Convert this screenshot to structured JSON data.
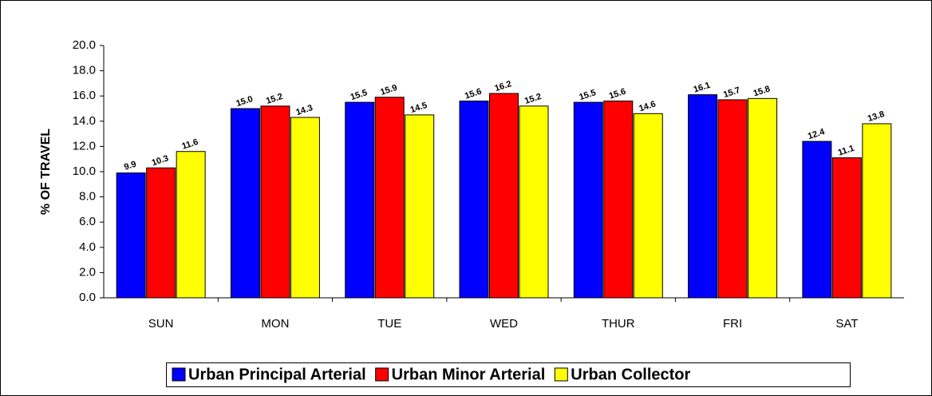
{
  "chart_data": {
    "type": "bar",
    "y_label": "% OF TRAVEL",
    "categories": [
      "SUN",
      "MON",
      "TUE",
      "WED",
      "THUR",
      "FRI",
      "SAT"
    ],
    "series": [
      {
        "name": "Urban Principal Arterial",
        "color": "#0000ff",
        "values": [
          9.9,
          15.0,
          15.5,
          15.6,
          15.5,
          16.1,
          12.4
        ],
        "value_labels": [
          "9.9",
          "15.0",
          "15.5",
          "15.6",
          "15.5",
          "16.1",
          "12.4"
        ]
      },
      {
        "name": "Urban Minor Arterial",
        "color": "#ff0000",
        "values": [
          10.3,
          15.2,
          15.9,
          16.2,
          15.6,
          15.7,
          11.1
        ],
        "value_labels": [
          "10.3",
          "15.2",
          "15.9",
          "16.2",
          "15.6",
          "15.7",
          "11.1"
        ]
      },
      {
        "name": "Urban Collector",
        "color": "#ffff00",
        "values": [
          11.6,
          14.3,
          14.5,
          15.2,
          14.6,
          15.8,
          13.8
        ],
        "value_labels": [
          "11.6",
          "14.3",
          "14.5",
          "15.2",
          "14.6",
          "15.8",
          "13.8"
        ]
      }
    ],
    "ylim": [
      0,
      20
    ],
    "yticks": [
      {
        "value": 0,
        "label": "0.0"
      },
      {
        "value": 2,
        "label": "2.0"
      },
      {
        "value": 4,
        "label": "4.0"
      },
      {
        "value": 6,
        "label": "6.0"
      },
      {
        "value": 8,
        "label": "8.0"
      },
      {
        "value": 10,
        "label": "10.0"
      },
      {
        "value": 12,
        "label": "12.0"
      },
      {
        "value": 14,
        "label": "14.0"
      },
      {
        "value": 16,
        "label": "16.0"
      },
      {
        "value": 18,
        "label": "18.0"
      },
      {
        "value": 20,
        "label": "20.0"
      }
    ],
    "grid": false,
    "legend": "bottom"
  }
}
